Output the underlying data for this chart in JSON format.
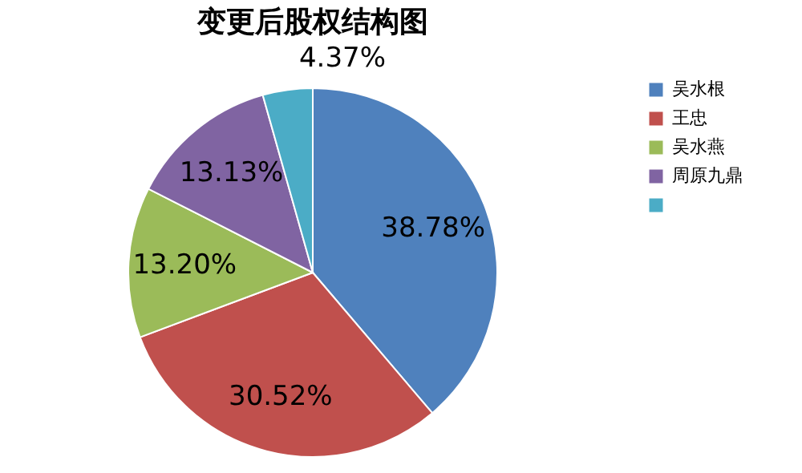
{
  "chart_data": {
    "type": "pie",
    "title": "变更后股权结构图",
    "categories": [
      "吴水根",
      "王忠",
      "吴水燕",
      "周原九鼎",
      null
    ],
    "values": [
      38.78,
      30.52,
      13.2,
      13.13,
      4.37
    ],
    "value_labels": [
      "38.78%",
      "30.52%",
      "13.20%",
      "13.13%",
      "4.37%"
    ],
    "colors": [
      "#4f81bd",
      "#c0504d",
      "#9bbb59",
      "#8064a2",
      "#4bacc6"
    ],
    "legend": "right"
  }
}
